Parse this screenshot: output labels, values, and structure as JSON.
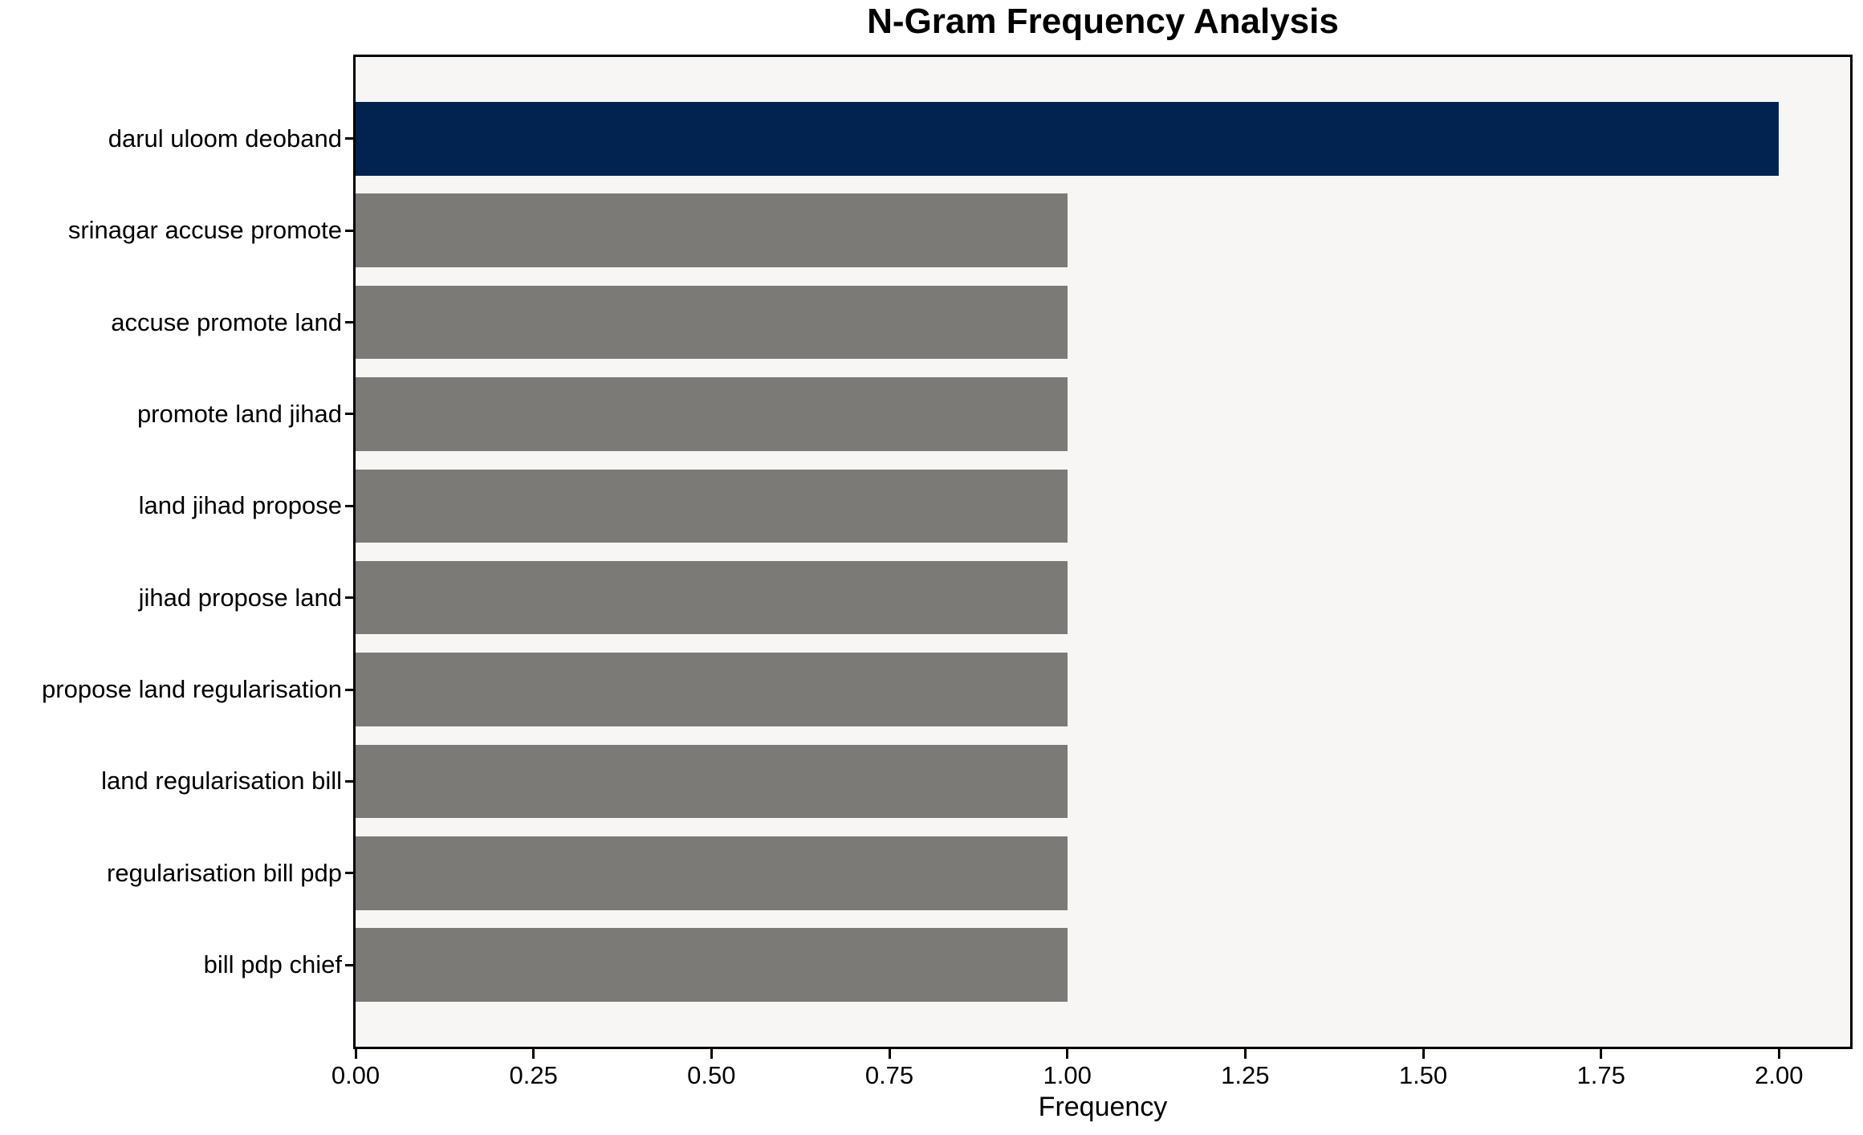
{
  "chart_data": {
    "type": "bar",
    "orientation": "horizontal",
    "title": "N-Gram Frequency Analysis",
    "xlabel": "Frequency",
    "ylabel": "",
    "categories": [
      "darul uloom deoband",
      "srinagar accuse promote",
      "accuse promote land",
      "promote land jihad",
      "land jihad propose",
      "jihad propose land",
      "propose land regularisation",
      "land regularisation bill",
      "regularisation bill pdp",
      "bill pdp chief"
    ],
    "values": [
      2,
      1,
      1,
      1,
      1,
      1,
      1,
      1,
      1,
      1
    ],
    "bar_colors": [
      "#02234f",
      "#7b7a77",
      "#7b7a77",
      "#7b7a77",
      "#7b7a77",
      "#7b7a77",
      "#7b7a77",
      "#7b7a77",
      "#7b7a77",
      "#7b7a77"
    ],
    "highlight_color": "#02234f",
    "default_color": "#7b7a77",
    "xlim": [
      0,
      2.1
    ],
    "xticks": [
      0,
      0.25,
      0.5,
      0.75,
      1.0,
      1.25,
      1.5,
      1.75,
      2.0
    ],
    "xtick_labels": [
      "0.00",
      "0.25",
      "0.50",
      "0.75",
      "1.00",
      "1.25",
      "1.50",
      "1.75",
      "2.00"
    ],
    "plot_bg": "#f7f6f5",
    "fig_bg": "#ffffff",
    "spine_color": "#000000",
    "grid": false,
    "legend": null,
    "bar_height_frac": 0.8
  }
}
